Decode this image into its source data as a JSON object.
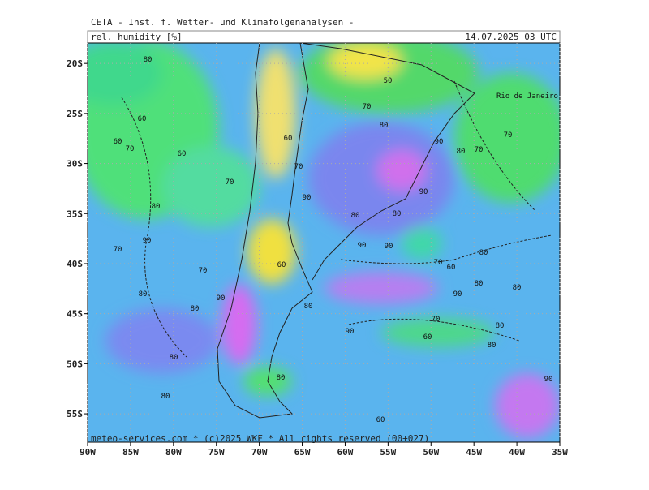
{
  "header": {
    "title": "CETA - Inst. f. Wetter- und Klimafolgenanalysen -",
    "variable": "rel. humidity [%]",
    "time": "14.07.2025 03 UTC"
  },
  "map": {
    "lonlim": [
      -90,
      -35
    ],
    "latlim": [
      -17.96,
      -57.83
    ],
    "xticks": [
      {
        "value": -90,
        "label": "90W"
      },
      {
        "value": -85,
        "label": "85W"
      },
      {
        "value": -80,
        "label": "80W"
      },
      {
        "value": -75,
        "label": "75W"
      },
      {
        "value": -70,
        "label": "70W"
      },
      {
        "value": -65,
        "label": "65W"
      },
      {
        "value": -60,
        "label": "60W"
      },
      {
        "value": -55,
        "label": "55W"
      },
      {
        "value": -50,
        "label": "50W"
      },
      {
        "value": -45,
        "label": "45W"
      },
      {
        "value": -40,
        "label": "40W"
      },
      {
        "value": -35,
        "label": "35W"
      }
    ],
    "yticks": [
      {
        "value": -20,
        "label": "20S"
      },
      {
        "value": -25,
        "label": "25S"
      },
      {
        "value": -30,
        "label": "30S"
      },
      {
        "value": -35,
        "label": "35S"
      },
      {
        "value": -40,
        "label": "40S"
      },
      {
        "value": -45,
        "label": "45S"
      },
      {
        "value": -50,
        "label": "50S"
      },
      {
        "value": -55,
        "label": "55S"
      }
    ],
    "city": "Rio de Janeiro",
    "contour_labels": [
      80,
      60,
      60,
      70,
      60,
      70,
      80,
      90,
      70,
      80,
      70,
      80,
      90,
      80,
      80,
      60,
      70,
      90,
      80,
      50,
      70,
      80,
      90,
      80,
      70,
      70,
      90,
      80,
      90,
      90,
      70,
      60,
      80,
      90,
      80,
      80,
      90,
      80,
      60,
      70,
      60,
      80,
      80,
      80,
      90,
      60
    ],
    "footer": "meteo-services.com * (c)2025 WKF * All rights reserved (00+027)"
  }
}
